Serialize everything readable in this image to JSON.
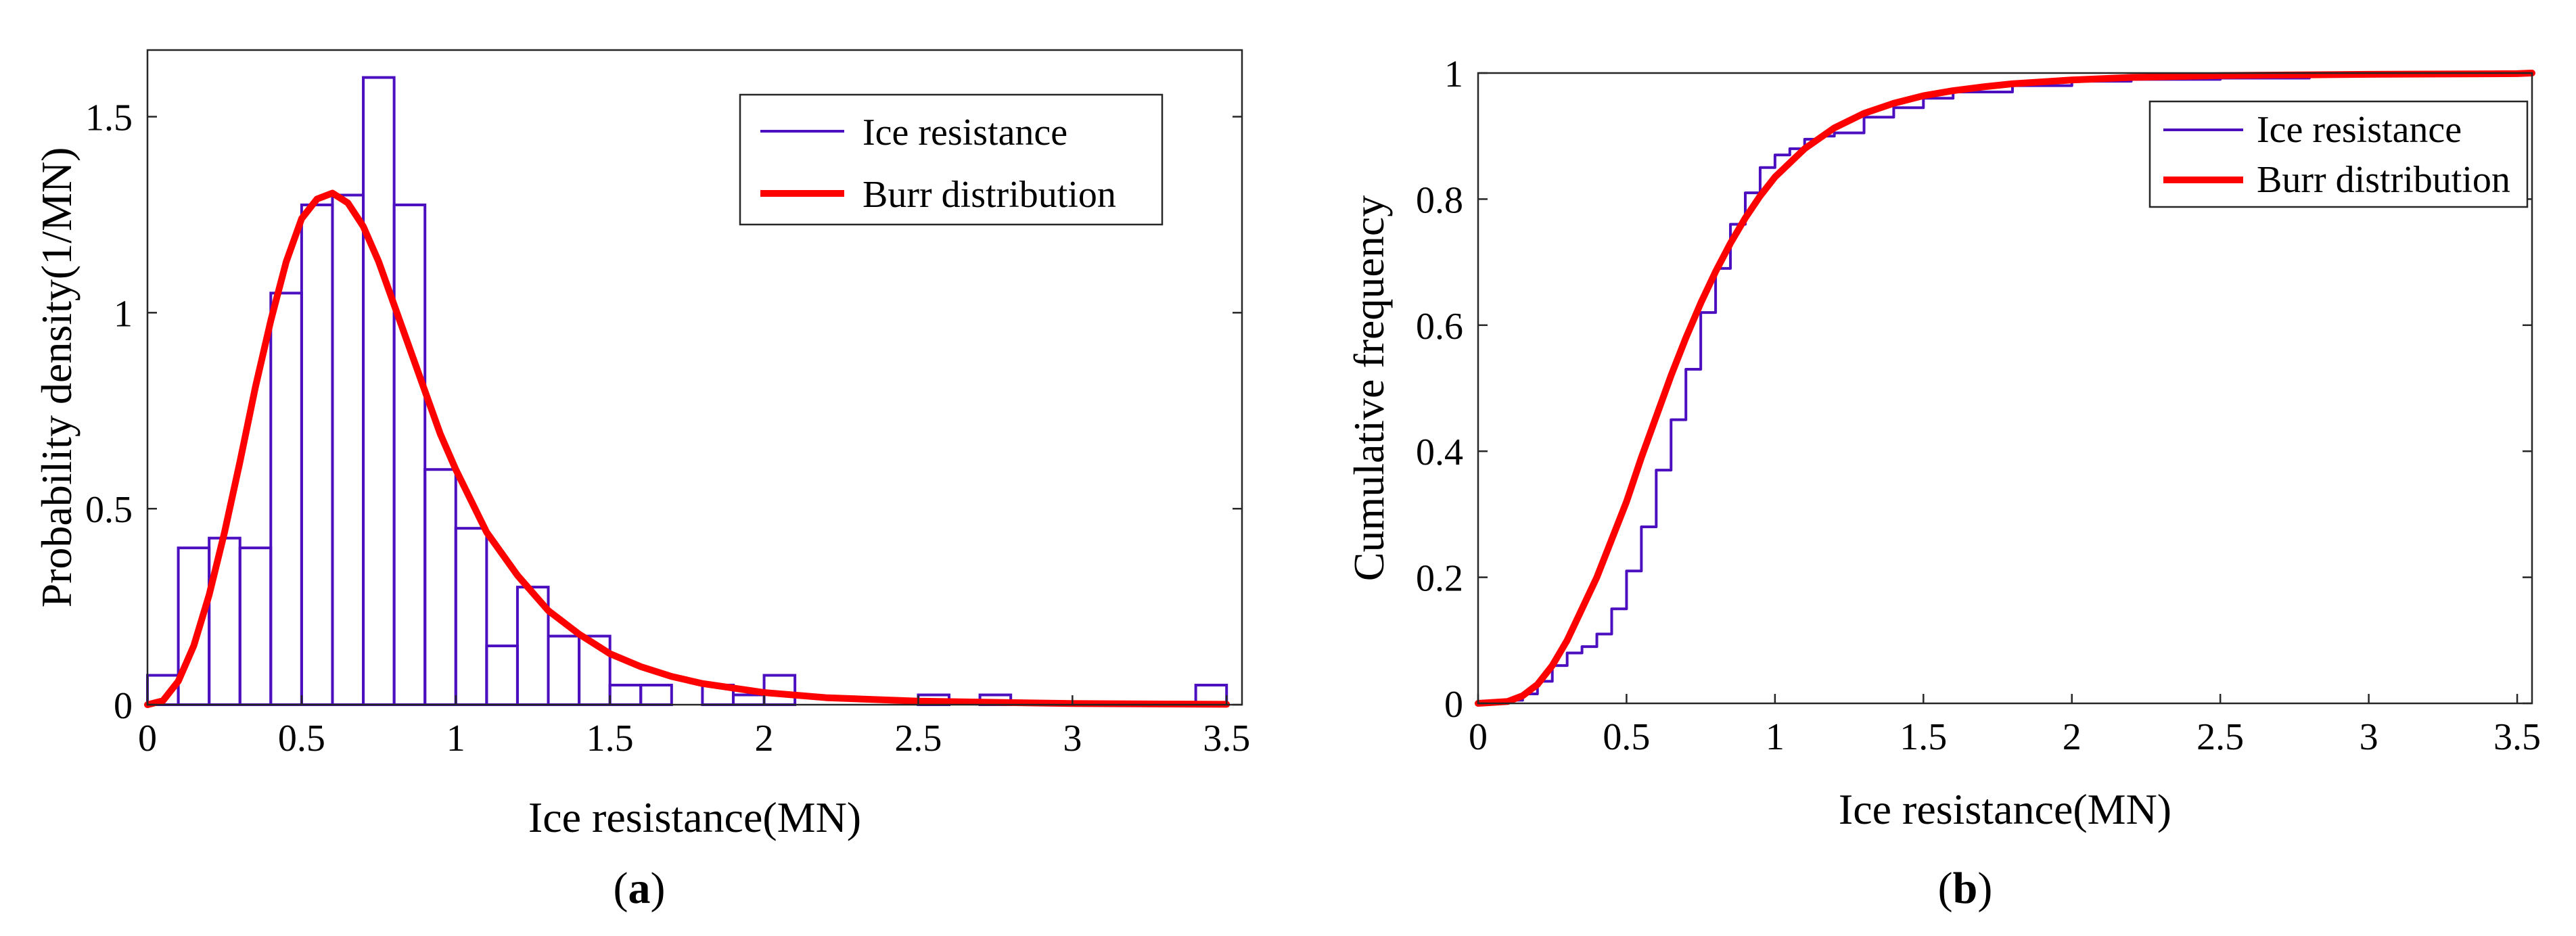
{
  "colors": {
    "histogram": "#4b0fbf",
    "fit": "#ff0000",
    "empirical": "#4b0fbf",
    "axis": "#262626"
  },
  "panels": {
    "a": {
      "label_open": "(",
      "label_letter": "a",
      "label_close": ")"
    },
    "b": {
      "label_open": "(",
      "label_letter": "b",
      "label_close": ")"
    }
  },
  "chart_data": [
    {
      "type": "bar",
      "subtype": "histogram-with-fitted-curve",
      "panel": "a",
      "title": "",
      "xlabel": "Ice resistance(MN)",
      "ylabel": "Probability density(1/MN)",
      "xlim": [
        0,
        3.55
      ],
      "ylim": [
        0,
        1.67
      ],
      "xticks": [
        0,
        0.5,
        1,
        1.5,
        2,
        2.5,
        3,
        3.5
      ],
      "xtick_labels": [
        "0",
        "0.5",
        "1",
        "1.5",
        "2",
        "2.5",
        "3",
        "3.5"
      ],
      "yticks": [
        0,
        0.5,
        1,
        1.5
      ],
      "ytick_labels": [
        "0",
        "0.5",
        "1",
        "1.5"
      ],
      "bin_width": 0.1,
      "bin_edges_start": 0,
      "histogram_values": [
        0.075,
        0.4,
        0.425,
        0.4,
        1.05,
        1.275,
        1.3,
        1.6,
        1.275,
        0.6,
        0.45,
        0.15,
        0.3,
        0.175,
        0.175,
        0.05,
        0.05,
        0.0,
        0.05,
        0.025,
        0.075,
        0.0,
        0.0,
        0.0,
        0.0,
        0.025,
        0.0,
        0.025,
        0.0,
        0.0,
        0.0,
        0.0,
        0.0,
        0.0,
        0.05
      ],
      "fit_curve": {
        "x": [
          0,
          0.05,
          0.1,
          0.15,
          0.2,
          0.25,
          0.3,
          0.35,
          0.4,
          0.45,
          0.5,
          0.55,
          0.6,
          0.65,
          0.7,
          0.75,
          0.8,
          0.85,
          0.9,
          0.95,
          1.0,
          1.1,
          1.2,
          1.3,
          1.4,
          1.5,
          1.6,
          1.7,
          1.8,
          2.0,
          2.2,
          2.5,
          3.0,
          3.5
        ],
        "y": [
          0,
          0.01,
          0.06,
          0.15,
          0.28,
          0.44,
          0.62,
          0.81,
          0.98,
          1.13,
          1.24,
          1.29,
          1.305,
          1.28,
          1.22,
          1.13,
          1.02,
          0.91,
          0.8,
          0.69,
          0.6,
          0.44,
          0.33,
          0.24,
          0.18,
          0.13,
          0.097,
          0.072,
          0.054,
          0.031,
          0.018,
          0.009,
          0.003,
          0.001
        ]
      },
      "legend": {
        "position": "top-right",
        "entries": [
          {
            "label": "Ice resistance",
            "style": "thin-line",
            "color": "#4b0fbf"
          },
          {
            "label": "Burr distribution",
            "style": "thick-line",
            "color": "#ff0000"
          }
        ]
      }
    },
    {
      "type": "line",
      "subtype": "cumulative-distribution",
      "panel": "b",
      "title": "",
      "xlabel": "Ice resistance(MN)",
      "ylabel": "Cumulative frequency",
      "xlim": [
        0,
        3.55
      ],
      "ylim": [
        0,
        1
      ],
      "xticks": [
        0,
        0.5,
        1,
        1.5,
        2,
        2.5,
        3,
        3.5
      ],
      "xtick_labels": [
        "0",
        "0.5",
        "1",
        "1.5",
        "2",
        "2.5",
        "3",
        "3.5"
      ],
      "yticks": [
        0,
        0.2,
        0.4,
        0.6,
        0.8,
        1
      ],
      "ytick_labels": [
        "0",
        "0.2",
        "0.4",
        "0.6",
        "0.8",
        "1"
      ],
      "series": [
        {
          "name": "Ice resistance",
          "x": [
            0,
            0.1,
            0.15,
            0.2,
            0.25,
            0.3,
            0.35,
            0.4,
            0.45,
            0.5,
            0.55,
            0.6,
            0.65,
            0.7,
            0.75,
            0.8,
            0.85,
            0.9,
            0.95,
            1.0,
            1.05,
            1.1,
            1.15,
            1.2,
            1.3,
            1.4,
            1.5,
            1.6,
            1.8,
            2.0,
            2.2,
            2.5,
            2.8,
            3.0,
            3.3,
            3.5
          ],
          "y": [
            0,
            0.005,
            0.015,
            0.035,
            0.06,
            0.08,
            0.09,
            0.11,
            0.15,
            0.21,
            0.28,
            0.37,
            0.45,
            0.53,
            0.62,
            0.69,
            0.76,
            0.81,
            0.85,
            0.87,
            0.88,
            0.895,
            0.9,
            0.905,
            0.93,
            0.945,
            0.96,
            0.97,
            0.98,
            0.987,
            0.99,
            0.992,
            0.995,
            0.996,
            0.998,
            1.0
          ]
        },
        {
          "name": "Burr distribution",
          "x": [
            0,
            0.1,
            0.15,
            0.2,
            0.25,
            0.3,
            0.35,
            0.4,
            0.45,
            0.5,
            0.55,
            0.6,
            0.65,
            0.7,
            0.75,
            0.8,
            0.85,
            0.9,
            0.95,
            1.0,
            1.1,
            1.2,
            1.3,
            1.4,
            1.5,
            1.6,
            1.7,
            1.8,
            2.0,
            2.2,
            2.5,
            3.0,
            3.5
          ],
          "y": [
            0,
            0.003,
            0.012,
            0.03,
            0.06,
            0.1,
            0.15,
            0.2,
            0.26,
            0.32,
            0.39,
            0.455,
            0.52,
            0.58,
            0.635,
            0.685,
            0.73,
            0.77,
            0.805,
            0.835,
            0.88,
            0.913,
            0.936,
            0.952,
            0.964,
            0.972,
            0.978,
            0.983,
            0.989,
            0.993,
            0.996,
            0.998,
            0.999
          ]
        }
      ],
      "legend": {
        "position": "top-right",
        "entries": [
          {
            "label": "Ice resistance",
            "style": "thin-line",
            "color": "#4b0fbf"
          },
          {
            "label": "Burr distribution",
            "style": "thick-line",
            "color": "#ff0000"
          }
        ]
      }
    }
  ]
}
